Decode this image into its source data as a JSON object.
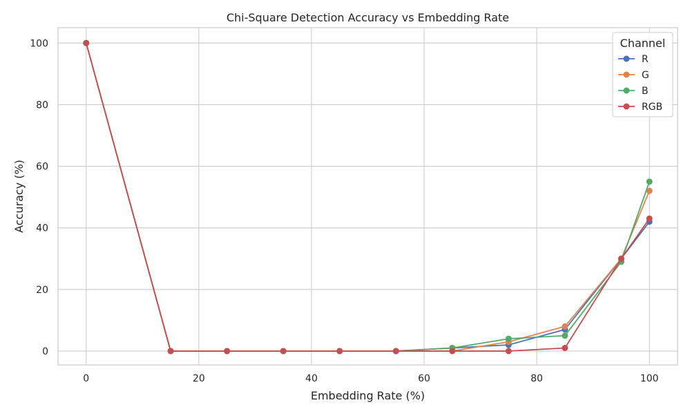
{
  "chart_data": {
    "type": "line",
    "title": "Chi-Square Detection Accuracy vs Embedding Rate",
    "xlabel": "Embedding Rate (%)",
    "ylabel": "Accuracy (%)",
    "x": [
      0,
      15,
      25,
      35,
      45,
      55,
      65,
      75,
      85,
      95,
      100
    ],
    "xlim": [
      -5,
      105
    ],
    "ylim": [
      -4.5,
      105
    ],
    "xticks": [
      0,
      20,
      40,
      60,
      80,
      100
    ],
    "yticks": [
      0,
      20,
      40,
      60,
      80,
      100
    ],
    "grid": true,
    "legend": {
      "title": "Channel",
      "placement": "top-right"
    },
    "series": [
      {
        "name": "R",
        "color": "#4c72b0",
        "values": [
          100,
          0,
          0,
          0,
          0,
          0,
          1,
          2,
          7,
          30,
          42
        ]
      },
      {
        "name": "G",
        "color": "#dd8452",
        "values": [
          100,
          0,
          0,
          0,
          0,
          0,
          0,
          3,
          8,
          30,
          52
        ]
      },
      {
        "name": "B",
        "color": "#55a868",
        "values": [
          100,
          0,
          0,
          0,
          0,
          0,
          1,
          4,
          5,
          29,
          55
        ]
      },
      {
        "name": "RGB",
        "color": "#c44e52",
        "values": [
          100,
          0,
          0,
          0,
          0,
          0,
          0,
          0,
          1,
          30,
          43
        ]
      }
    ]
  }
}
